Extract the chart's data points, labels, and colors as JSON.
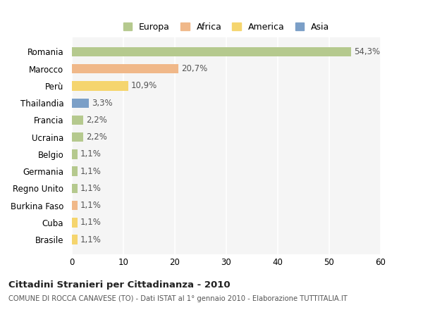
{
  "categories": [
    "Romania",
    "Marocco",
    "Perù",
    "Thailandia",
    "Francia",
    "Ucraina",
    "Belgio",
    "Germania",
    "Regno Unito",
    "Burkina Faso",
    "Cuba",
    "Brasile"
  ],
  "values": [
    54.3,
    20.7,
    10.9,
    3.3,
    2.2,
    2.2,
    1.1,
    1.1,
    1.1,
    1.1,
    1.1,
    1.1
  ],
  "bar_colors": [
    "#b5c98e",
    "#f0b889",
    "#f5d56e",
    "#7b9fc7",
    "#b5c98e",
    "#b5c98e",
    "#b5c98e",
    "#b5c98e",
    "#b5c98e",
    "#f0b889",
    "#f5d56e",
    "#f5d56e"
  ],
  "labels": [
    "54,3%",
    "20,7%",
    "10,9%",
    "3,3%",
    "2,2%",
    "2,2%",
    "1,1%",
    "1,1%",
    "1,1%",
    "1,1%",
    "1,1%",
    "1,1%"
  ],
  "xlim": [
    0,
    60
  ],
  "xticks": [
    0,
    10,
    20,
    30,
    40,
    50,
    60
  ],
  "title": "Cittadini Stranieri per Cittadinanza - 2010",
  "subtitle": "COMUNE DI ROCCA CANAVESE (TO) - Dati ISTAT al 1° gennaio 2010 - Elaborazione TUTTITALIA.IT",
  "legend_labels": [
    "Europa",
    "Africa",
    "America",
    "Asia"
  ],
  "legend_colors": [
    "#b5c98e",
    "#f0b889",
    "#f5d56e",
    "#7b9fc7"
  ],
  "background_color": "#ffffff",
  "plot_bg_color": "#f5f5f5",
  "grid_color": "#ffffff"
}
